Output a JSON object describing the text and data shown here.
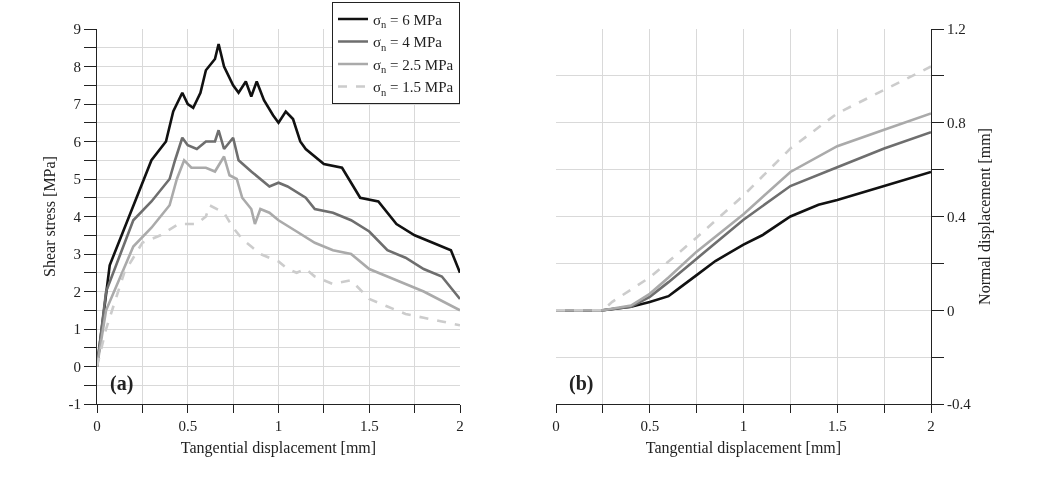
{
  "chart_data": [
    {
      "type": "line",
      "xlabel": "Tangential displacement [mm]",
      "ylabel": "Shear stress [MPa]",
      "annotations": [
        "(a)"
      ],
      "xlim": [
        0,
        2
      ],
      "xticks": [
        0,
        {
          "value": 0.25,
          "label": null
        },
        0.5,
        {
          "value": 0.75,
          "label": null
        },
        1,
        {
          "value": 1.25,
          "label": null
        },
        1.5,
        {
          "value": 1.75,
          "label": null
        },
        2
      ],
      "ylim": [
        -1,
        9
      ],
      "yticks": [
        -1,
        {
          "value": -0.5,
          "label": null
        },
        0,
        {
          "value": 0.5,
          "label": null
        },
        1,
        {
          "value": 1.5,
          "label": null
        },
        2,
        {
          "value": 2.5,
          "label": null
        },
        3,
        {
          "value": 3.5,
          "label": null
        },
        4,
        {
          "value": 4.5,
          "label": null
        },
        5,
        {
          "value": 5.5,
          "label": null
        },
        6,
        {
          "value": 6.5,
          "label": null
        },
        7,
        {
          "value": 7.5,
          "label": null
        },
        8,
        {
          "value": 8.5,
          "label": null
        },
        9
      ],
      "grid": true,
      "legend": "top right",
      "marker": "none",
      "series": [
        {
          "name": "σ$_{n}$ = 6 MPa",
          "color": "#111111",
          "line_style": "solid",
          "x": [
            0,
            0.07,
            0.3,
            0.38,
            0.42,
            0.47,
            0.5,
            0.53,
            0.57,
            0.6,
            0.65,
            0.67,
            0.7,
            0.75,
            0.78,
            0.82,
            0.85,
            0.88,
            0.92,
            0.97,
            1.0,
            1.04,
            1.08,
            1.12,
            1.15,
            1.25,
            1.35,
            1.4,
            1.45,
            1.55,
            1.65,
            1.75,
            1.85,
            1.95,
            2.0
          ],
          "values": [
            0,
            2.7,
            5.5,
            6.0,
            6.8,
            7.3,
            7.0,
            6.9,
            7.3,
            7.9,
            8.2,
            8.6,
            8.0,
            7.5,
            7.3,
            7.6,
            7.2,
            7.6,
            7.1,
            6.7,
            6.5,
            6.8,
            6.6,
            6.0,
            5.8,
            5.4,
            5.3,
            4.9,
            4.5,
            4.4,
            3.8,
            3.5,
            3.3,
            3.1,
            2.5
          ]
        },
        {
          "name": "σ$_{n}$ = 4 MPa",
          "color": "#6e6e6e",
          "line_style": "solid",
          "x": [
            0,
            0.05,
            0.2,
            0.3,
            0.4,
            0.43,
            0.47,
            0.5,
            0.55,
            0.6,
            0.65,
            0.67,
            0.7,
            0.75,
            0.78,
            0.85,
            0.95,
            1.0,
            1.05,
            1.15,
            1.2,
            1.3,
            1.4,
            1.5,
            1.6,
            1.7,
            1.8,
            1.9,
            2.0
          ],
          "values": [
            0,
            2.0,
            3.9,
            4.4,
            5.0,
            5.5,
            6.1,
            5.9,
            5.8,
            6.0,
            6.0,
            6.3,
            5.8,
            6.1,
            5.5,
            5.2,
            4.8,
            4.9,
            4.8,
            4.5,
            4.2,
            4.1,
            3.9,
            3.6,
            3.1,
            2.9,
            2.6,
            2.4,
            1.8
          ]
        },
        {
          "name": "σ$_{n}$ = 2.5 MPa",
          "color": "#aaaaaa",
          "line_style": "solid",
          "x": [
            0,
            0.05,
            0.2,
            0.3,
            0.4,
            0.44,
            0.48,
            0.52,
            0.6,
            0.65,
            0.7,
            0.73,
            0.77,
            0.8,
            0.85,
            0.87,
            0.9,
            0.95,
            1.0,
            1.1,
            1.2,
            1.3,
            1.4,
            1.5,
            1.6,
            1.7,
            1.8,
            2.0
          ],
          "values": [
            0,
            1.5,
            3.2,
            3.7,
            4.3,
            5.0,
            5.5,
            5.3,
            5.3,
            5.2,
            5.6,
            5.1,
            5.0,
            4.5,
            4.2,
            3.8,
            4.2,
            4.1,
            3.9,
            3.6,
            3.3,
            3.1,
            3.0,
            2.6,
            2.4,
            2.2,
            2.0,
            1.5
          ]
        },
        {
          "name": "σ$_{n}$ = 1.5 MPa",
          "color": "#cccccc",
          "line_style": "dashed",
          "x": [
            0,
            0.05,
            0.15,
            0.25,
            0.35,
            0.45,
            0.55,
            0.6,
            0.62,
            0.7,
            0.75,
            0.8,
            0.85,
            0.9,
            0.95,
            1.0,
            1.05,
            1.1,
            1.15,
            1.2,
            1.3,
            1.4,
            1.5,
            1.6,
            1.7,
            1.8,
            1.9,
            2.0
          ],
          "values": [
            0,
            1.0,
            2.5,
            3.3,
            3.5,
            3.8,
            3.8,
            4.0,
            4.3,
            4.1,
            3.7,
            3.4,
            3.2,
            3.0,
            2.9,
            2.8,
            2.6,
            2.5,
            2.6,
            2.4,
            2.2,
            2.3,
            1.8,
            1.6,
            1.4,
            1.3,
            1.2,
            1.1
          ]
        }
      ]
    },
    {
      "type": "line",
      "xlabel": "Tangential displacement [mm]",
      "y2label": "Normal displacement [mm]",
      "annotations": [
        "(b)"
      ],
      "xlim": [
        0,
        2
      ],
      "xticks": [
        0,
        {
          "value": 0.25,
          "label": null
        },
        0.5,
        {
          "value": 0.75,
          "label": null
        },
        1,
        {
          "value": 1.25,
          "label": null
        },
        1.5,
        {
          "value": 1.75,
          "label": null
        },
        2
      ],
      "y2lim": [
        -0.4,
        1.2
      ],
      "y2ticks": [
        -0.4,
        {
          "value": -0.2,
          "label": null
        },
        0,
        {
          "value": 0.2,
          "label": null
        },
        0.4,
        {
          "value": 0.6,
          "label": null
        },
        0.8,
        {
          "value": 1.0,
          "label": null
        },
        1.2
      ],
      "grid": true,
      "marker": "none",
      "series": [
        {
          "color": "#111111",
          "line_style": "solid",
          "axis": "y2",
          "x": [
            0,
            0.25,
            0.4,
            0.5,
            0.6,
            0.65,
            0.75,
            0.85,
            1.0,
            1.1,
            1.25,
            1.4,
            1.5,
            1.75,
            2.0
          ],
          "values": [
            0,
            0,
            0.015,
            0.035,
            0.06,
            0.09,
            0.15,
            0.21,
            0.28,
            0.32,
            0.4,
            0.45,
            0.47,
            0.53,
            0.59
          ]
        },
        {
          "color": "#6e6e6e",
          "line_style": "solid",
          "axis": "y2",
          "x": [
            0,
            0.25,
            0.4,
            0.5,
            0.6,
            0.75,
            1.0,
            1.25,
            1.5,
            1.75,
            2.0
          ],
          "values": [
            0,
            0,
            0.015,
            0.057,
            0.12,
            0.22,
            0.386,
            0.53,
            0.61,
            0.69,
            0.76
          ]
        },
        {
          "color": "#aaaaaa",
          "line_style": "solid",
          "axis": "y2",
          "x": [
            0,
            0.25,
            0.4,
            0.5,
            0.6,
            0.75,
            1.0,
            1.25,
            1.5,
            1.75,
            2.0
          ],
          "values": [
            0,
            0,
            0.02,
            0.07,
            0.14,
            0.25,
            0.41,
            0.59,
            0.7,
            0.77,
            0.84
          ]
        },
        {
          "color": "#cccccc",
          "line_style": "dashed",
          "axis": "y2",
          "x": [
            0,
            0.25,
            0.3,
            0.5,
            0.75,
            1.0,
            1.25,
            1.5,
            1.75,
            2.0
          ],
          "values": [
            0,
            0,
            0.036,
            0.14,
            0.31,
            0.49,
            0.69,
            0.84,
            0.94,
            1.04
          ]
        }
      ]
    }
  ]
}
